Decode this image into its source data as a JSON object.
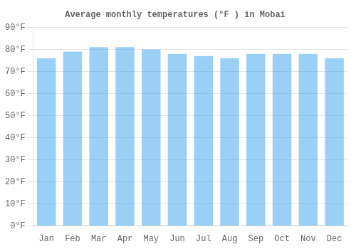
{
  "chart_data": {
    "type": "bar",
    "title": "Average monthly temperatures (°F ) in Mobai",
    "categories": [
      "Jan",
      "Feb",
      "Mar",
      "Apr",
      "May",
      "Jun",
      "Jul",
      "Aug",
      "Sep",
      "Oct",
      "Nov",
      "Dec"
    ],
    "values": [
      76,
      79,
      81,
      81,
      80,
      78,
      77,
      76,
      78,
      78,
      78,
      76
    ],
    "ylim": [
      0,
      90
    ],
    "yticks": [
      {
        "value": 0,
        "label": "0°F"
      },
      {
        "value": 10,
        "label": "10°F"
      },
      {
        "value": 20,
        "label": "20°F"
      },
      {
        "value": 30,
        "label": "30°F"
      },
      {
        "value": 40,
        "label": "40°F"
      },
      {
        "value": 50,
        "label": "50°F"
      },
      {
        "value": 60,
        "label": "60°F"
      },
      {
        "value": 70,
        "label": "70°F"
      },
      {
        "value": 80,
        "label": "80°F"
      },
      {
        "value": 90,
        "label": "90°F"
      }
    ],
    "grid": true
  }
}
